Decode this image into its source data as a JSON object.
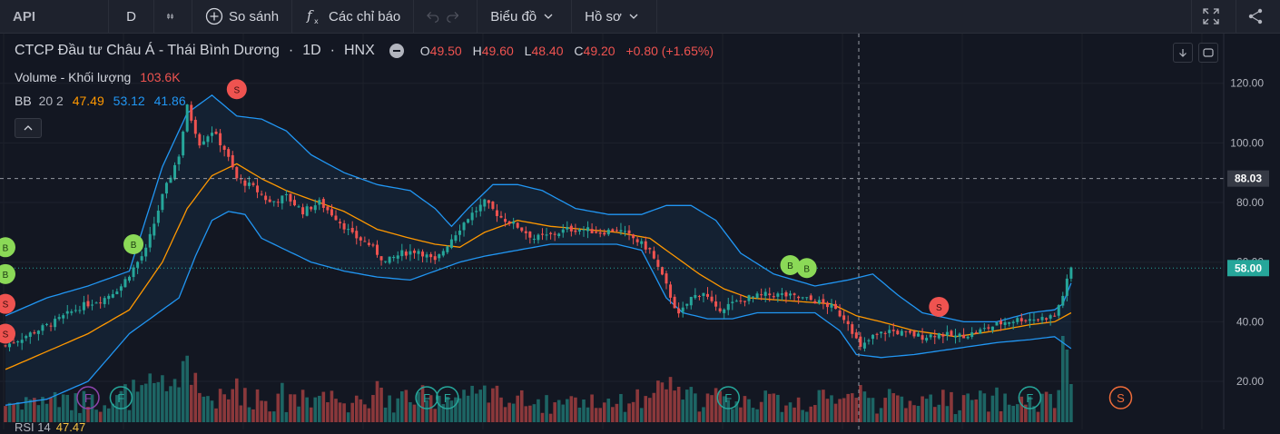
{
  "toolbar": {
    "symbol": "API",
    "interval": "D",
    "compare_label": "So sánh",
    "indicators_label": "Các chỉ báo",
    "chart_type_label": "Biểu đồ",
    "profile_label": "Hồ sơ"
  },
  "legend": {
    "name": "CTCP Đầu tư Châu Á - Thái Bình Dương",
    "interval": "1D",
    "exchange": "HNX",
    "open_key": "O",
    "open": "49.50",
    "high_key": "H",
    "high": "49.60",
    "low_key": "L",
    "low": "48.40",
    "close_key": "C",
    "close": "49.20",
    "change": "+0.80 (+1.65%)",
    "volume_label": "Volume - Khối lượng",
    "volume_value": "103.6K",
    "bb_label": "BB",
    "bb_params": "20 2",
    "bb_mid": "47.49",
    "bb_upper": "53.12",
    "bb_lower": "41.86",
    "rsi_label": "RSI 14",
    "rsi_value": "47.47"
  },
  "colors": {
    "up": "#26a69a",
    "down": "#ef5350",
    "bb_band": "#2196f3",
    "bb_basis": "#ff9800",
    "buy_marker": "#8bd957",
    "sell_marker": "#ef5350",
    "last_price": "#26a69a"
  },
  "chart_data": {
    "type": "candlestick",
    "ylim": [
      6,
      126
    ],
    "y_ticks": [
      20,
      40,
      60,
      80,
      100,
      120
    ],
    "crosshair_price": "88.03",
    "last_price": "58.00",
    "grid": true,
    "legend_position": "top-left",
    "close_series": [
      {
        "i": 0,
        "v": 32
      },
      {
        "i": 6,
        "v": 36
      },
      {
        "i": 12,
        "v": 40
      },
      {
        "i": 18,
        "v": 45
      },
      {
        "i": 24,
        "v": 48
      },
      {
        "i": 28,
        "v": 52
      },
      {
        "i": 34,
        "v": 64
      },
      {
        "i": 38,
        "v": 82
      },
      {
        "i": 42,
        "v": 96
      },
      {
        "i": 44,
        "v": 112
      },
      {
        "i": 47,
        "v": 100
      },
      {
        "i": 50,
        "v": 104
      },
      {
        "i": 53,
        "v": 98
      },
      {
        "i": 56,
        "v": 88
      },
      {
        "i": 60,
        "v": 85
      },
      {
        "i": 64,
        "v": 80
      },
      {
        "i": 68,
        "v": 82
      },
      {
        "i": 72,
        "v": 77
      },
      {
        "i": 76,
        "v": 80
      },
      {
        "i": 80,
        "v": 75
      },
      {
        "i": 84,
        "v": 69
      },
      {
        "i": 88,
        "v": 66
      },
      {
        "i": 92,
        "v": 60
      },
      {
        "i": 96,
        "v": 63
      },
      {
        "i": 100,
        "v": 64
      },
      {
        "i": 104,
        "v": 60
      },
      {
        "i": 108,
        "v": 68
      },
      {
        "i": 112,
        "v": 75
      },
      {
        "i": 116,
        "v": 80
      },
      {
        "i": 120,
        "v": 75
      },
      {
        "i": 124,
        "v": 72
      },
      {
        "i": 128,
        "v": 68
      },
      {
        "i": 132,
        "v": 69
      },
      {
        "i": 136,
        "v": 71
      },
      {
        "i": 140,
        "v": 71
      },
      {
        "i": 144,
        "v": 70
      },
      {
        "i": 148,
        "v": 71
      },
      {
        "i": 152,
        "v": 68
      },
      {
        "i": 156,
        "v": 64
      },
      {
        "i": 160,
        "v": 52
      },
      {
        "i": 163,
        "v": 42
      },
      {
        "i": 166,
        "v": 48
      },
      {
        "i": 169,
        "v": 50
      },
      {
        "i": 172,
        "v": 44
      },
      {
        "i": 176,
        "v": 46
      },
      {
        "i": 180,
        "v": 48
      },
      {
        "i": 184,
        "v": 49
      },
      {
        "i": 188,
        "v": 49
      },
      {
        "i": 192,
        "v": 48
      },
      {
        "i": 196,
        "v": 47
      },
      {
        "i": 200,
        "v": 45
      },
      {
        "i": 204,
        "v": 40
      },
      {
        "i": 207,
        "v": 31
      },
      {
        "i": 210,
        "v": 35
      },
      {
        "i": 214,
        "v": 37
      },
      {
        "i": 218,
        "v": 36
      },
      {
        "i": 222,
        "v": 35
      },
      {
        "i": 226,
        "v": 36
      },
      {
        "i": 230,
        "v": 35
      },
      {
        "i": 234,
        "v": 36
      },
      {
        "i": 238,
        "v": 38
      },
      {
        "i": 242,
        "v": 40
      },
      {
        "i": 246,
        "v": 41
      },
      {
        "i": 250,
        "v": 41
      },
      {
        "i": 254,
        "v": 42
      },
      {
        "i": 256,
        "v": 49
      },
      {
        "i": 258,
        "v": 58
      }
    ],
    "bb_upper": [
      {
        "i": 0,
        "v": 42
      },
      {
        "i": 10,
        "v": 48
      },
      {
        "i": 20,
        "v": 52
      },
      {
        "i": 30,
        "v": 57
      },
      {
        "i": 38,
        "v": 92
      },
      {
        "i": 44,
        "v": 110
      },
      {
        "i": 50,
        "v": 116
      },
      {
        "i": 56,
        "v": 109
      },
      {
        "i": 62,
        "v": 108
      },
      {
        "i": 68,
        "v": 104
      },
      {
        "i": 74,
        "v": 96
      },
      {
        "i": 82,
        "v": 90
      },
      {
        "i": 90,
        "v": 86
      },
      {
        "i": 98,
        "v": 84
      },
      {
        "i": 104,
        "v": 78
      },
      {
        "i": 108,
        "v": 72
      },
      {
        "i": 112,
        "v": 78
      },
      {
        "i": 118,
        "v": 86
      },
      {
        "i": 124,
        "v": 86
      },
      {
        "i": 130,
        "v": 84
      },
      {
        "i": 138,
        "v": 78
      },
      {
        "i": 146,
        "v": 76
      },
      {
        "i": 154,
        "v": 76
      },
      {
        "i": 160,
        "v": 79
      },
      {
        "i": 166,
        "v": 79
      },
      {
        "i": 172,
        "v": 74
      },
      {
        "i": 178,
        "v": 63
      },
      {
        "i": 186,
        "v": 56
      },
      {
        "i": 196,
        "v": 52
      },
      {
        "i": 204,
        "v": 54
      },
      {
        "i": 210,
        "v": 56
      },
      {
        "i": 216,
        "v": 49
      },
      {
        "i": 222,
        "v": 43
      },
      {
        "i": 232,
        "v": 40
      },
      {
        "i": 240,
        "v": 40
      },
      {
        "i": 248,
        "v": 43
      },
      {
        "i": 254,
        "v": 44
      },
      {
        "i": 256,
        "v": 46
      },
      {
        "i": 258,
        "v": 53
      }
    ],
    "bb_basis": [
      {
        "i": 0,
        "v": 24
      },
      {
        "i": 10,
        "v": 30
      },
      {
        "i": 20,
        "v": 36
      },
      {
        "i": 30,
        "v": 44
      },
      {
        "i": 38,
        "v": 60
      },
      {
        "i": 44,
        "v": 78
      },
      {
        "i": 50,
        "v": 89
      },
      {
        "i": 56,
        "v": 93
      },
      {
        "i": 62,
        "v": 88
      },
      {
        "i": 68,
        "v": 84
      },
      {
        "i": 74,
        "v": 81
      },
      {
        "i": 82,
        "v": 77
      },
      {
        "i": 90,
        "v": 71
      },
      {
        "i": 98,
        "v": 68
      },
      {
        "i": 104,
        "v": 66
      },
      {
        "i": 110,
        "v": 65
      },
      {
        "i": 116,
        "v": 70
      },
      {
        "i": 124,
        "v": 74
      },
      {
        "i": 132,
        "v": 72
      },
      {
        "i": 140,
        "v": 71
      },
      {
        "i": 148,
        "v": 70
      },
      {
        "i": 156,
        "v": 68
      },
      {
        "i": 162,
        "v": 62
      },
      {
        "i": 168,
        "v": 56
      },
      {
        "i": 174,
        "v": 51
      },
      {
        "i": 180,
        "v": 48
      },
      {
        "i": 190,
        "v": 47
      },
      {
        "i": 200,
        "v": 46
      },
      {
        "i": 206,
        "v": 42
      },
      {
        "i": 212,
        "v": 40
      },
      {
        "i": 220,
        "v": 37
      },
      {
        "i": 230,
        "v": 35
      },
      {
        "i": 240,
        "v": 37
      },
      {
        "i": 248,
        "v": 39
      },
      {
        "i": 254,
        "v": 40
      },
      {
        "i": 258,
        "v": 43
      }
    ],
    "bb_lower": [
      {
        "i": 0,
        "v": 12
      },
      {
        "i": 10,
        "v": 14
      },
      {
        "i": 20,
        "v": 20
      },
      {
        "i": 30,
        "v": 36
      },
      {
        "i": 36,
        "v": 42
      },
      {
        "i": 42,
        "v": 48
      },
      {
        "i": 46,
        "v": 62
      },
      {
        "i": 50,
        "v": 74
      },
      {
        "i": 54,
        "v": 77
      },
      {
        "i": 58,
        "v": 76
      },
      {
        "i": 62,
        "v": 68
      },
      {
        "i": 68,
        "v": 64
      },
      {
        "i": 74,
        "v": 60
      },
      {
        "i": 82,
        "v": 57
      },
      {
        "i": 90,
        "v": 55
      },
      {
        "i": 98,
        "v": 54
      },
      {
        "i": 104,
        "v": 57
      },
      {
        "i": 110,
        "v": 60
      },
      {
        "i": 116,
        "v": 62
      },
      {
        "i": 124,
        "v": 64
      },
      {
        "i": 132,
        "v": 66
      },
      {
        "i": 140,
        "v": 66
      },
      {
        "i": 148,
        "v": 66
      },
      {
        "i": 154,
        "v": 64
      },
      {
        "i": 160,
        "v": 48
      },
      {
        "i": 164,
        "v": 43
      },
      {
        "i": 170,
        "v": 41
      },
      {
        "i": 176,
        "v": 41
      },
      {
        "i": 182,
        "v": 43
      },
      {
        "i": 188,
        "v": 43
      },
      {
        "i": 196,
        "v": 43
      },
      {
        "i": 202,
        "v": 37
      },
      {
        "i": 206,
        "v": 29
      },
      {
        "i": 212,
        "v": 28
      },
      {
        "i": 220,
        "v": 29
      },
      {
        "i": 230,
        "v": 31
      },
      {
        "i": 240,
        "v": 33
      },
      {
        "i": 248,
        "v": 34
      },
      {
        "i": 254,
        "v": 35
      },
      {
        "i": 258,
        "v": 31
      }
    ],
    "signals": [
      {
        "i": 0,
        "v": 65,
        "label": "B",
        "kind": "buy"
      },
      {
        "i": 0,
        "v": 56,
        "label": "B",
        "kind": "buy"
      },
      {
        "i": 0,
        "v": 46,
        "label": "S",
        "kind": "sell"
      },
      {
        "i": 0,
        "v": 36,
        "label": "S",
        "kind": "sell"
      },
      {
        "i": 31,
        "v": 66,
        "label": "B",
        "kind": "buy"
      },
      {
        "i": 56,
        "v": 118,
        "label": "S",
        "kind": "sell"
      },
      {
        "i": 190,
        "v": 59,
        "label": "B",
        "kind": "buy"
      },
      {
        "i": 194,
        "v": 58,
        "label": "B",
        "kind": "buy"
      },
      {
        "i": 226,
        "v": 45,
        "label": "S",
        "kind": "sell"
      }
    ],
    "events": [
      {
        "i": 20,
        "label": "F",
        "color": "#8e44ad"
      },
      {
        "i": 28,
        "label": "F",
        "color": "#26a69a"
      },
      {
        "i": 102,
        "label": "F",
        "color": "#26a69a"
      },
      {
        "i": 107,
        "label": "F",
        "color": "#26a69a"
      },
      {
        "i": 175,
        "label": "F",
        "color": "#26a69a"
      },
      {
        "i": 248,
        "label": "F",
        "color": "#26a69a"
      },
      {
        "i": 270,
        "label": "S",
        "color": "#ef6c3a"
      }
    ]
  }
}
